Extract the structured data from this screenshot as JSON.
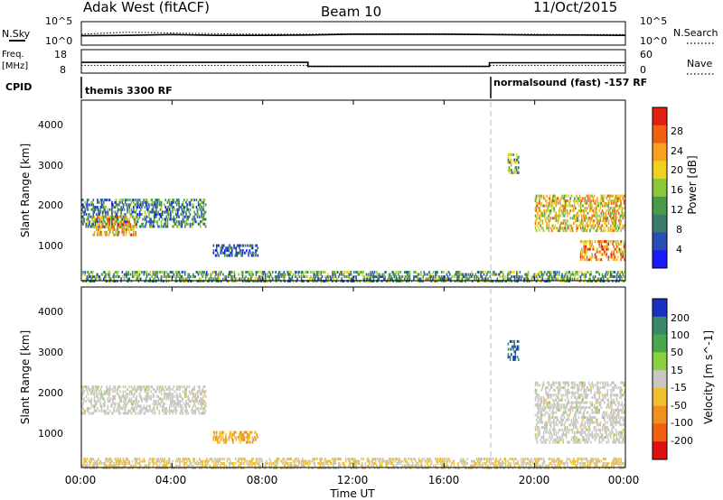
{
  "header": {
    "station": "Adak West (fitACF)",
    "beam": "Beam 10",
    "date": "11/Oct/2015"
  },
  "noise_panel": {
    "left_label": "N.Sky",
    "right_label": "N.Search",
    "left_ticks": [
      "10^5",
      "10^0"
    ],
    "right_ticks": [
      "10^5",
      "10^0"
    ]
  },
  "freq_panel": {
    "left_label": "Freq.",
    "left_unit": "[MHz]",
    "right_label": "Nave",
    "left_ticks": [
      "18",
      "8"
    ],
    "right_ticks": [
      "60",
      "0"
    ]
  },
  "cpid_panel": {
    "label": "CPID",
    "mode_1": "themis 3300 RF",
    "mode_2": "normalsound (fast) -157 RF"
  },
  "x_axis": {
    "label": "Time UT",
    "ticks": [
      "00:00",
      "04:00",
      "08:00",
      "12:00",
      "16:00",
      "20:00",
      "00:00"
    ]
  },
  "power_panel": {
    "ylabel": "Slant Range [km]",
    "yticks": [
      "4000",
      "3000",
      "2000",
      "1000"
    ],
    "colorbar_label": "Power [dB]",
    "colorbar_ticks": [
      "28",
      "24",
      "20",
      "16",
      "12",
      "8",
      "4"
    ],
    "colors": [
      "#1a1aff",
      "#2a4cb8",
      "#3a7a6a",
      "#4a9a4a",
      "#8ac83a",
      "#f0d020",
      "#f8a020",
      "#f06010",
      "#e02010"
    ]
  },
  "velocity_panel": {
    "ylabel": "Slant Range [km]",
    "yticks": [
      "4000",
      "3000",
      "2000",
      "1000"
    ],
    "colorbar_label": "Velocity [m s^-1]",
    "colorbar_ticks": [
      "200",
      "100",
      "50",
      "15",
      "-15",
      "-50",
      "-100",
      "-200"
    ],
    "colors": [
      "#1a30c0",
      "#3a8a6a",
      "#4aa84a",
      "#8ad040",
      "#c8c8c0",
      "#f0c030",
      "#f09020",
      "#f06010",
      "#e01010"
    ]
  },
  "chart_data": [
    {
      "type": "line",
      "title": "N.Sky / N.Search",
      "x": [
        0,
        2,
        4,
        6,
        8,
        10,
        12,
        14,
        16,
        18,
        20,
        22,
        24
      ],
      "series": [
        {
          "name": "N.Sky",
          "values": [
            1.9,
            2.0,
            2.2,
            2.0,
            2.0,
            2.1,
            2.3,
            2.3,
            2.3,
            2.2,
            2.1,
            2.1,
            2.0
          ]
        },
        {
          "name": "N.Search",
          "values": [
            2.3,
            2.8,
            2.6,
            2.4,
            2.3,
            2.3,
            2.4,
            2.4,
            2.4,
            2.3,
            2.3,
            2.2,
            2.2
          ]
        }
      ],
      "ylim": [
        0,
        5
      ]
    },
    {
      "type": "line",
      "title": "Freq. / Nave",
      "x": [
        0,
        10,
        10,
        18,
        18,
        24
      ],
      "series": [
        {
          "name": "Freq.",
          "values": [
            12.5,
            12.5,
            10.5,
            10.5,
            12.3,
            12.3
          ]
        },
        {
          "name": "Nave",
          "values": [
            18,
            18,
            14,
            14,
            18,
            18
          ]
        }
      ],
      "xlim": [
        0,
        24
      ]
    },
    {
      "type": "heatmap",
      "title": "Power [dB]",
      "xlim": [
        0,
        24
      ],
      "ylim": [
        180,
        4500
      ],
      "regions": [
        {
          "x0": 0.0,
          "x1": 5.5,
          "y0": 1500,
          "y1": 2200,
          "value": 10
        },
        {
          "x0": 0.5,
          "x1": 2.5,
          "y0": 1300,
          "y1": 1800,
          "value": 22
        },
        {
          "x0": 5.8,
          "x1": 7.8,
          "y0": 800,
          "y1": 1100,
          "value": 6
        },
        {
          "x0": 0.0,
          "x1": 24.0,
          "y0": 180,
          "y1": 450,
          "value": 12
        },
        {
          "x0": 18.8,
          "x1": 19.3,
          "y0": 2800,
          "y1": 3300,
          "value": 14
        },
        {
          "x0": 20.0,
          "x1": 24.0,
          "y0": 1400,
          "y1": 2300,
          "value": 20
        },
        {
          "x0": 22.0,
          "x1": 24.0,
          "y0": 700,
          "y1": 1200,
          "value": 24
        }
      ]
    },
    {
      "type": "heatmap",
      "title": "Velocity [m s^-1]",
      "xlim": [
        0,
        24
      ],
      "ylim": [
        180,
        4500
      ],
      "regions": [
        {
          "x0": 0.0,
          "x1": 5.5,
          "y0": 1500,
          "y1": 2200,
          "value": 0
        },
        {
          "x0": 5.8,
          "x1": 7.8,
          "y0": 800,
          "y1": 1100,
          "value": -80
        },
        {
          "x0": 0.0,
          "x1": 24.0,
          "y0": 180,
          "y1": 450,
          "value": -30
        },
        {
          "x0": 18.8,
          "x1": 19.3,
          "y0": 2800,
          "y1": 3300,
          "value": 180
        },
        {
          "x0": 20.0,
          "x1": 24.0,
          "y0": 800,
          "y1": 2300,
          "value": 0
        }
      ]
    }
  ]
}
